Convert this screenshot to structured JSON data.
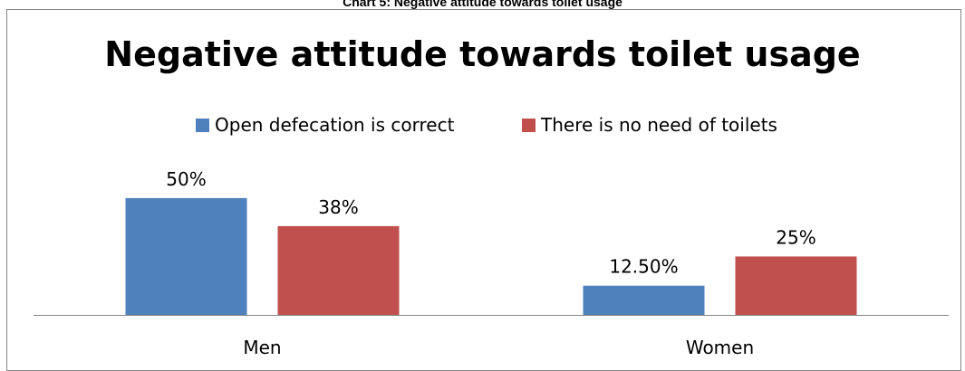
{
  "figure_caption": "Chart 5: Negative attitude towards toilet usage",
  "chart_data": {
    "type": "bar",
    "title": "Negative attitude towards toilet usage",
    "categories": [
      "Men",
      "Women"
    ],
    "series": [
      {
        "name": "Open defecation is correct",
        "values": [
          50,
          12.5
        ],
        "labels": [
          "50%",
          "12.50%"
        ],
        "color": "#4f81bd"
      },
      {
        "name": "There is no need of toilets",
        "values": [
          38,
          25
        ],
        "labels": [
          "38%",
          "25%"
        ],
        "color": "#c0504d"
      }
    ],
    "ylim": [
      0,
      67
    ],
    "grid": false,
    "legend": "top",
    "xlabel": "",
    "ylabel": ""
  }
}
